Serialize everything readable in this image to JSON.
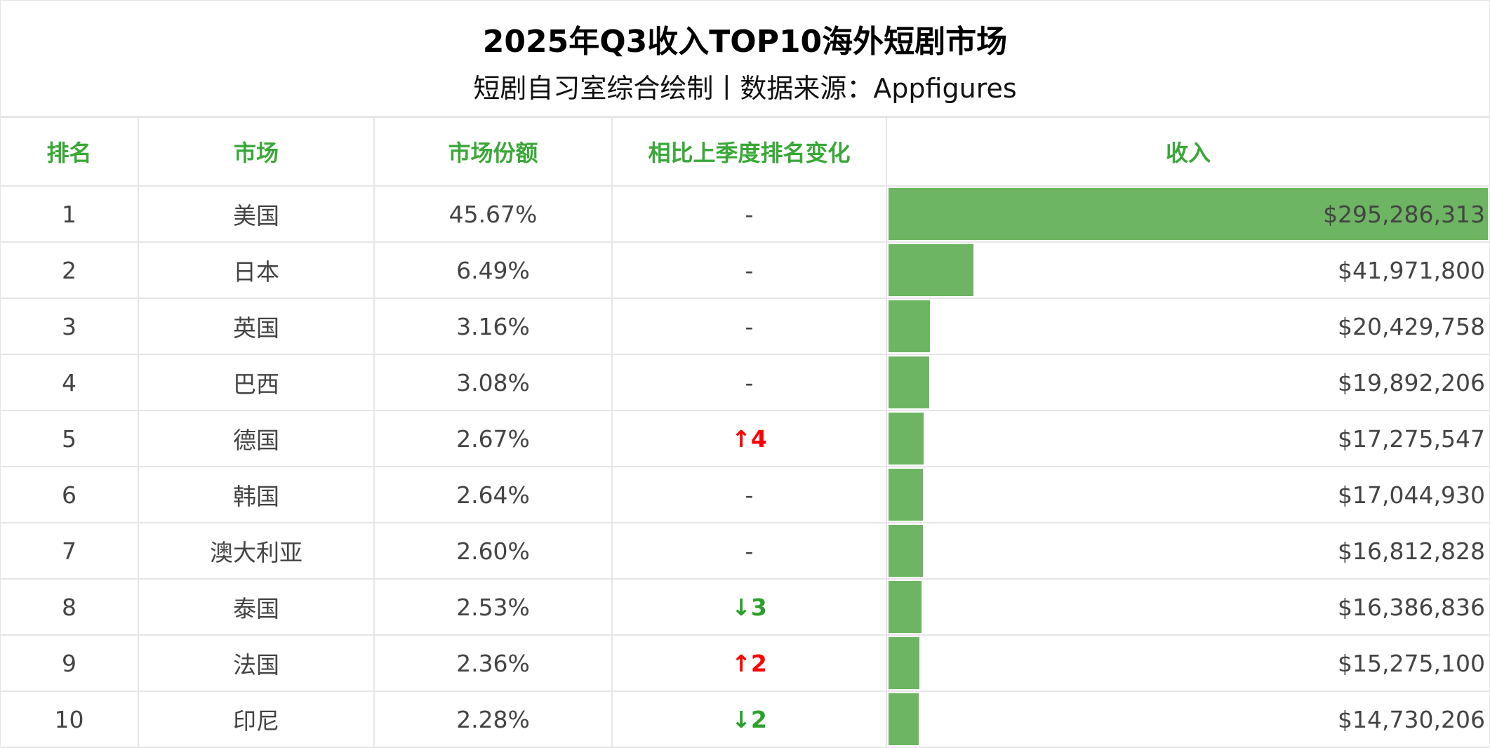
{
  "title": "2025年Q3收入TOP10海外短剧市场",
  "subtitle": "短剧自习室综合绘制丨数据来源：Appfigures",
  "headers": [
    "排名",
    "市场",
    "市场份额",
    "相比上季度排名变化",
    "收入"
  ],
  "colors": {
    "header": "#3aa838",
    "bar": "#6db562",
    "up": "#ff0000",
    "down": "#2ca02c"
  },
  "chart_data": {
    "type": "table",
    "title": "2025年Q3收入TOP10海外短剧市场",
    "columns": [
      "排名",
      "市场",
      "市场份额",
      "相比上季度排名变化",
      "收入"
    ],
    "rows": [
      {
        "rank": "1",
        "market": "美国",
        "share": "45.67%",
        "change": "-",
        "dir": "none",
        "revenue": "$295,286,313",
        "value": 295286313
      },
      {
        "rank": "2",
        "market": "日本",
        "share": "6.49%",
        "change": "-",
        "dir": "none",
        "revenue": "$41,971,800",
        "value": 41971800
      },
      {
        "rank": "3",
        "market": "英国",
        "share": "3.16%",
        "change": "-",
        "dir": "none",
        "revenue": "$20,429,758",
        "value": 20429758
      },
      {
        "rank": "4",
        "market": "巴西",
        "share": "3.08%",
        "change": "-",
        "dir": "none",
        "revenue": "$19,892,206",
        "value": 19892206
      },
      {
        "rank": "5",
        "market": "德国",
        "share": "2.67%",
        "change": "↑4",
        "dir": "up",
        "revenue": "$17,275,547",
        "value": 17275547
      },
      {
        "rank": "6",
        "market": "韩国",
        "share": "2.64%",
        "change": "-",
        "dir": "none",
        "revenue": "$17,044,930",
        "value": 17044930
      },
      {
        "rank": "7",
        "market": "澳大利亚",
        "share": "2.60%",
        "change": "-",
        "dir": "none",
        "revenue": "$16,812,828",
        "value": 16812828
      },
      {
        "rank": "8",
        "market": "泰国",
        "share": "2.53%",
        "change": "↓3",
        "dir": "down",
        "revenue": "$16,386,836",
        "value": 16386836
      },
      {
        "rank": "9",
        "market": "法国",
        "share": "2.36%",
        "change": "↑2",
        "dir": "up",
        "revenue": "$15,275,100",
        "value": 15275100
      },
      {
        "rank": "10",
        "market": "印尼",
        "share": "2.28%",
        "change": "↓2",
        "dir": "down",
        "revenue": "$14,730,206",
        "value": 14730206
      }
    ]
  }
}
